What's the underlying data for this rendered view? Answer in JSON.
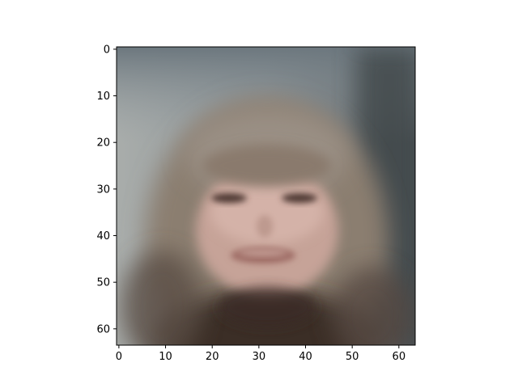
{
  "image": {
    "description": "blurry reconstructed face image, 64x64 pixels",
    "x_ticks": [
      "0",
      "10",
      "20",
      "30",
      "40",
      "50",
      "60"
    ],
    "y_ticks": [
      "0",
      "10",
      "20",
      "30",
      "40",
      "50",
      "60"
    ],
    "extent": [
      -0.5,
      63.5
    ],
    "colors": {
      "sky_top": "#8f9aa1",
      "sky_dark": "#5f6b73",
      "background_left": "#a6aaa8",
      "background_right": "#4c5357",
      "hair": "#8a7d6f",
      "hair_dark": "#3b2f29",
      "skin": "#c9a59a",
      "skin_light": "#d8b8ae",
      "eyes": "#5a443c",
      "mouth": "#a0716a",
      "neck_shadow": "#2b211d"
    }
  }
}
